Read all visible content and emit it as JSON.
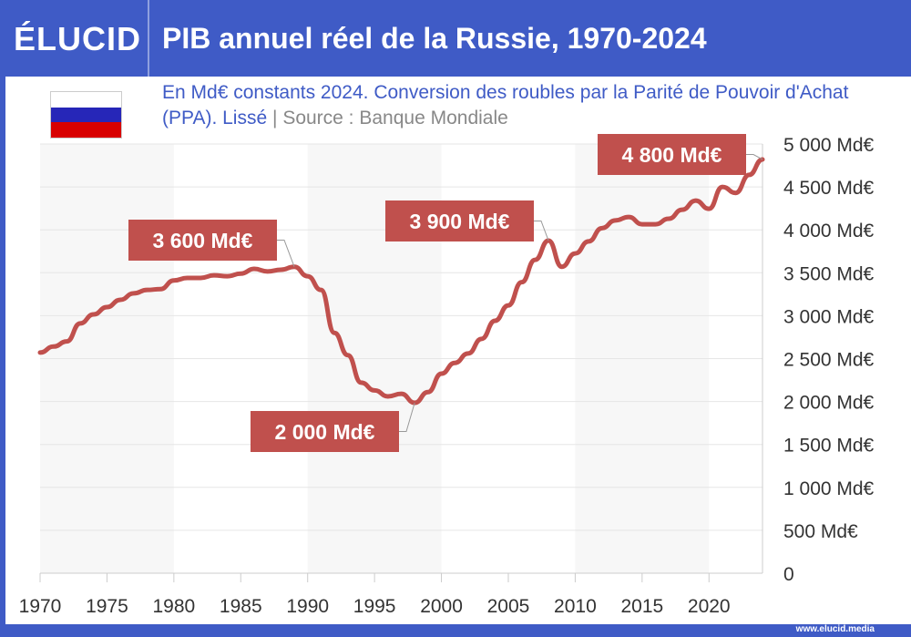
{
  "header": {
    "logo": "ÉLUCID",
    "title": "PIB annuel réel de la Russie, 1970-2024"
  },
  "subtitle": {
    "text": "En Md€ constants 2024. Conversion des roubles par la Parité de Pouvoir d'Achat (PPA). Lissé",
    "separator": "|",
    "source": "Source : Banque Mondiale"
  },
  "flag": {
    "colors": [
      "#ffffff",
      "#2626b8",
      "#d80000"
    ]
  },
  "footer": {
    "url": "www.elucid.media"
  },
  "colors": {
    "brand": "#3f5bc6",
    "line": "#c0504d"
  },
  "chart_data": {
    "type": "line",
    "title": "PIB annuel réel de la Russie, 1970-2024",
    "xlim": [
      1970,
      2024
    ],
    "ylim": [
      0,
      5000
    ],
    "x_ticks": [
      1970,
      1975,
      1980,
      1985,
      1990,
      1995,
      2000,
      2005,
      2010,
      2015,
      2020
    ],
    "x_tick_labels": [
      "1970",
      "1975",
      "1980",
      "1985",
      "1990",
      "1995",
      "2000",
      "2005",
      "2010",
      "2015",
      "2020"
    ],
    "y_ticks": [
      0,
      500,
      1000,
      1500,
      2000,
      2500,
      3000,
      3500,
      4000,
      4500,
      5000
    ],
    "y_tick_labels": [
      "0",
      "500 Md€",
      "1 000 Md€",
      "1 500 Md€",
      "2 000 Md€",
      "2 500 Md€",
      "3 000 Md€",
      "3 500 Md€",
      "4 000 Md€",
      "4 500 Md€",
      "5 000 Md€"
    ],
    "grid": true,
    "y_axis_side": "right",
    "x": [
      1970,
      1971,
      1972,
      1973,
      1974,
      1975,
      1976,
      1977,
      1978,
      1979,
      1980,
      1981,
      1982,
      1983,
      1984,
      1985,
      1986,
      1987,
      1988,
      1989,
      1990,
      1991,
      1992,
      1993,
      1994,
      1995,
      1996,
      1997,
      1998,
      1999,
      2000,
      2001,
      2002,
      2003,
      2004,
      2005,
      2006,
      2007,
      2008,
      2009,
      2010,
      2011,
      2012,
      2013,
      2014,
      2015,
      2016,
      2017,
      2018,
      2019,
      2020,
      2021,
      2022,
      2023,
      2024
    ],
    "values": [
      2570,
      2640,
      2700,
      2910,
      3015,
      3100,
      3185,
      3260,
      3300,
      3310,
      3410,
      3440,
      3440,
      3470,
      3460,
      3490,
      3545,
      3515,
      3535,
      3570,
      3460,
      3300,
      2800,
      2540,
      2220,
      2130,
      2060,
      2090,
      1985,
      2110,
      2325,
      2450,
      2560,
      2730,
      2940,
      3120,
      3390,
      3650,
      3875,
      3570,
      3725,
      3865,
      4020,
      4110,
      4150,
      4065,
      4065,
      4130,
      4235,
      4340,
      4245,
      4500,
      4430,
      4640,
      4820
    ],
    "annotations": [
      {
        "x": 1989,
        "y": 3570,
        "text": "3 600 Md€"
      },
      {
        "x": 1998,
        "y": 1985,
        "text": "2 000 Md€"
      },
      {
        "x": 2008,
        "y": 3875,
        "text": "3 900 Md€"
      },
      {
        "x": 2024,
        "y": 4820,
        "text": "4 800 Md€"
      }
    ]
  }
}
